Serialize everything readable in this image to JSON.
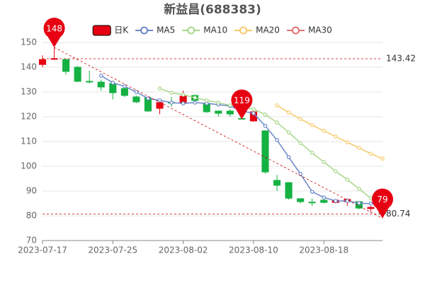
{
  "chart_data": {
    "type": "candlestick",
    "title": "新益昌(688383)",
    "categories": [
      "2023-07-17",
      null,
      null,
      null,
      null,
      null,
      "2023-07-25",
      null,
      null,
      null,
      null,
      null,
      "2023-08-02",
      null,
      null,
      null,
      null,
      null,
      "2023-08-10",
      null,
      null,
      null,
      null,
      null,
      "2023-08-18",
      null,
      null,
      null,
      null,
      null
    ],
    "candles": {
      "name": "日K",
      "up_color": "#e60012",
      "down_color": "#14b143",
      "open": [
        141.1,
        143.3,
        143.1,
        140.0,
        134.3,
        134.0,
        133.4,
        131.4,
        128.0,
        127.7,
        123.4,
        125.8,
        125.4,
        128.6,
        125.4,
        122.3,
        122.3,
        119.3,
        118.3,
        114.3,
        94.3,
        93.4,
        86.9,
        85.5,
        86.3,
        85.4,
        85.7,
        85.7,
        82.9,
        82.6
      ],
      "close": [
        143.1,
        143.5,
        138.3,
        134.3,
        134.1,
        132.0,
        129.7,
        128.6,
        126.0,
        122.3,
        125.7,
        125.6,
        128.3,
        126.6,
        122.0,
        121.4,
        121.1,
        119.2,
        122.0,
        97.7,
        92.3,
        87.1,
        85.7,
        85.3,
        85.4,
        86.3,
        86.6,
        83.1,
        83.4,
        80.9
      ],
      "high": [
        144.8,
        148,
        143.5,
        140.5,
        138.6,
        135.0,
        134.5,
        132.5,
        128.5,
        128.0,
        127.0,
        128.0,
        130.5,
        129.0,
        126.0,
        122.5,
        123.0,
        119.8,
        122.5,
        114.5,
        96.5,
        93.6,
        87.0,
        87.0,
        86.6,
        86.6,
        87.0,
        86.0,
        84.0,
        83.0
      ],
      "low": [
        140.0,
        142.9,
        137.0,
        134.0,
        133.4,
        130.5,
        127.0,
        128.0,
        125.5,
        122.0,
        121.0,
        124.0,
        125.0,
        125.5,
        121.5,
        120.0,
        120.0,
        119,
        118.0,
        97.0,
        90.0,
        86.5,
        85.0,
        84.0,
        85.0,
        85.0,
        84.0,
        82.6,
        81.5,
        79
      ]
    },
    "series": [
      {
        "name": "MA5",
        "color": "#6a87c9",
        "values": [
          null,
          null,
          null,
          null,
          null,
          136.6,
          133.7,
          132.3,
          130.0,
          127.4,
          126.6,
          125.7,
          125.4,
          125.7,
          125.4,
          124.9,
          124.3,
          122.3,
          121.4,
          116.3,
          110.6,
          103.7,
          96.9,
          89.7,
          87.4,
          86.0,
          86.0,
          85.1,
          84.9,
          84.6
        ]
      },
      {
        "name": "MA10",
        "color": "#a7d68a",
        "values": [
          null,
          null,
          null,
          null,
          null,
          null,
          null,
          null,
          null,
          null,
          131.4,
          129.7,
          128.9,
          127.7,
          126.6,
          125.7,
          124.6,
          123.7,
          123.1,
          120.9,
          117.7,
          113.7,
          109.4,
          105.4,
          101.7,
          98.0,
          94.6,
          90.9,
          87.1,
          84.3
        ]
      },
      {
        "name": "MA20",
        "color": "#f7c96b",
        "values": [
          null,
          null,
          null,
          null,
          null,
          null,
          null,
          null,
          null,
          null,
          null,
          null,
          null,
          null,
          null,
          null,
          null,
          null,
          null,
          null,
          124.6,
          121.7,
          119.1,
          116.6,
          114.3,
          112.0,
          109.7,
          107.4,
          105.1,
          103.1
        ]
      },
      {
        "name": "MA30",
        "color": "#e57373",
        "values": [
          null,
          null,
          null,
          null,
          null,
          null,
          null,
          null,
          null,
          null,
          null,
          null,
          null,
          null,
          null,
          null,
          null,
          null,
          null,
          null,
          null,
          null,
          null,
          null,
          null,
          null,
          null,
          null,
          null,
          null
        ]
      }
    ],
    "markers": [
      148,
      119,
      79
    ],
    "marker_color": "#e60012",
    "reference_lines": [
      143.42,
      80.74
    ],
    "reference_color": "#cc0000",
    "ylim": [
      70,
      150
    ],
    "yticks": [
      70,
      80,
      90,
      100,
      110,
      120,
      130,
      140,
      150
    ],
    "grid": true
  }
}
